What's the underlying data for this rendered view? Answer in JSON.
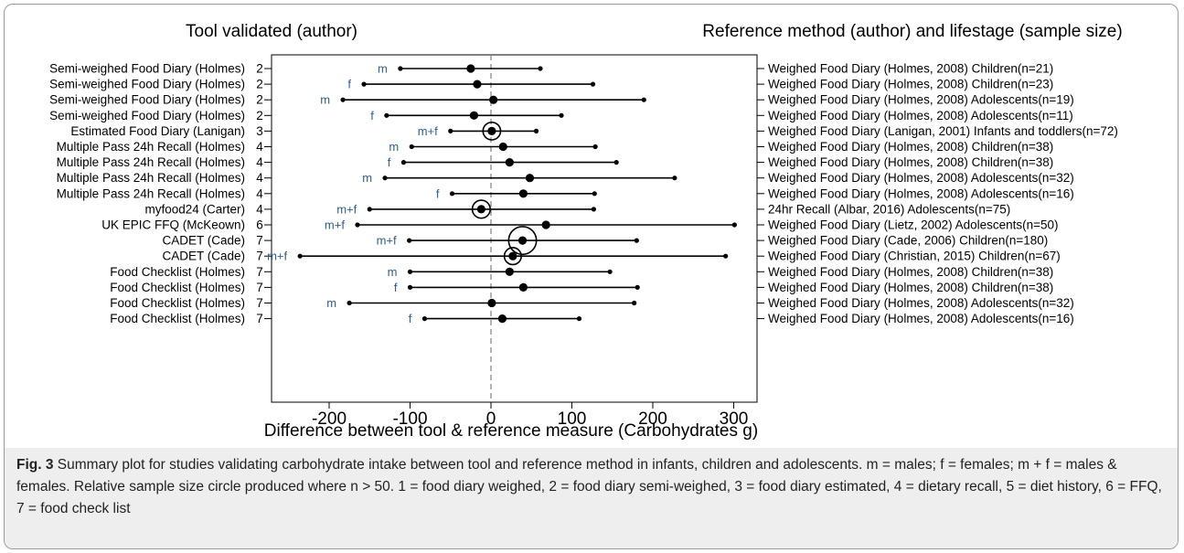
{
  "chart_data": {
    "type": "forest",
    "left_header": "Tool validated (author)",
    "right_header": "Reference method (author) and lifestage (sample size)",
    "xlabel": "Difference between tool & reference measure (Carbohydrates g)",
    "xlim": [
      -265,
      325
    ],
    "xticks": [
      -200,
      -100,
      0,
      100,
      200,
      300
    ],
    "xtick_labels": [
      "-200",
      "-100",
      "0",
      "100",
      "200",
      "300"
    ],
    "reference_line": 0,
    "rows": [
      {
        "tool": "Semi-weighed Food Diary (Holmes)",
        "code": "2",
        "group": "m",
        "reference": "Weighed Food Diary (Holmes, 2008) Children(n=21)",
        "mean": -25,
        "lower": -112,
        "upper": 61,
        "n": 21
      },
      {
        "tool": "Semi-weighed Food Diary (Holmes)",
        "code": "2",
        "group": "f",
        "reference": "Weighed Food Diary (Holmes, 2008) Children(n=23)",
        "mean": -17,
        "lower": -157,
        "upper": 126,
        "n": 23
      },
      {
        "tool": "Semi-weighed Food Diary (Holmes)",
        "code": "2",
        "group": "m",
        "reference": "Weighed Food Diary (Holmes, 2008) Adolescents(n=19)",
        "mean": 3,
        "lower": -183,
        "upper": 189,
        "n": 19
      },
      {
        "tool": "Semi-weighed Food Diary (Holmes)",
        "code": "2",
        "group": "f",
        "reference": "Weighed Food Diary (Holmes, 2008) Adolescents(n=11)",
        "mean": -21,
        "lower": -129,
        "upper": 87,
        "n": 11
      },
      {
        "tool": "Estimated Food Diary (Lanigan)",
        "code": "3",
        "group": "m+f",
        "reference": "Weighed Food Diary (Lanigan, 2001) Infants and toddlers(n=72)",
        "mean": 1,
        "lower": -50,
        "upper": 56,
        "n": 72
      },
      {
        "tool": "Multiple Pass 24h Recall (Holmes)",
        "code": "4",
        "group": "m",
        "reference": "Weighed Food Diary (Holmes, 2008) Children(n=38)",
        "mean": 15,
        "lower": -98,
        "upper": 129,
        "n": 38
      },
      {
        "tool": "Multiple Pass 24h Recall (Holmes)",
        "code": "4",
        "group": "f",
        "reference": "Weighed Food Diary (Holmes, 2008) Children(n=38)",
        "mean": 23,
        "lower": -108,
        "upper": 155,
        "n": 38
      },
      {
        "tool": "Multiple Pass 24h Recall (Holmes)",
        "code": "4",
        "group": "m",
        "reference": "Weighed Food Diary (Holmes, 2008) Adolescents(n=32)",
        "mean": 48,
        "lower": -131,
        "upper": 227,
        "n": 32
      },
      {
        "tool": "Multiple Pass 24h Recall (Holmes)",
        "code": "4",
        "group": "f",
        "reference": "Weighed Food Diary (Holmes, 2008) Adolescents(n=16)",
        "mean": 40,
        "lower": -48,
        "upper": 128,
        "n": 16
      },
      {
        "tool": "myfood24 (Carter)",
        "code": "4",
        "group": "m+f",
        "reference": "24hr Recall (Albar, 2016) Adolescents(n=75)",
        "mean": -12,
        "lower": -150,
        "upper": 127,
        "n": 75
      },
      {
        "tool": "UK EPIC FFQ (McKeown)",
        "code": "6",
        "group": "m+f",
        "reference": "Weighed Food Diary (Lietz, 2002) Adolescents(n=50)",
        "mean": 68,
        "lower": -165,
        "upper": 301,
        "n": 50
      },
      {
        "tool": "CADET (Cade)",
        "code": "7",
        "group": "m+f",
        "reference": "Weighed Food Diary (Cade, 2006) Children(n=180)",
        "mean": 39,
        "lower": -101,
        "upper": 180,
        "n": 180
      },
      {
        "tool": "CADET (Cade)",
        "code": "7",
        "group": "m+f",
        "reference": "Weighed Food Diary (Christian, 2015) Children(n=67)",
        "mean": 27,
        "lower": -236,
        "upper": 290,
        "n": 67
      },
      {
        "tool": "Food Checklist (Holmes)",
        "code": "7",
        "group": "m",
        "reference": "Weighed Food Diary (Holmes, 2008) Children(n=38)",
        "mean": 23,
        "lower": -100,
        "upper": 147,
        "n": 38
      },
      {
        "tool": "Food Checklist (Holmes)",
        "code": "7",
        "group": "f",
        "reference": "Weighed Food Diary (Holmes, 2008) Children(n=38)",
        "mean": 40,
        "lower": -100,
        "upper": 181,
        "n": 38
      },
      {
        "tool": "Food Checklist (Holmes)",
        "code": "7",
        "group": "m",
        "reference": "Weighed Food Diary (Holmes, 2008) Adolescents(n=32)",
        "mean": 1,
        "lower": -175,
        "upper": 177,
        "n": 32
      },
      {
        "tool": "Food Checklist (Holmes)",
        "code": "7",
        "group": "f",
        "reference": "Weighed Food Diary (Holmes, 2008) Adolescents(n=16)",
        "mean": 14,
        "lower": -82,
        "upper": 109,
        "n": 16
      }
    ]
  },
  "caption": {
    "label": "Fig. 3",
    "text": "Summary plot for studies validating carbohydrate intake between tool and reference method in infants, children and adolescents. m = males; f = females; m + f = males & females. Relative sample size circle produced where n > 50. 1 = food diary weighed, 2 = food diary semi-weighed, 3 = food diary estimated, 4 = dietary recall, 5 = diet history, 6 = FFQ, 7 = food check list"
  },
  "colors": {
    "group_label": "#2e5f91",
    "marks": "#000000",
    "reference_line": "#808080",
    "caption_background": "#eeeeee"
  }
}
